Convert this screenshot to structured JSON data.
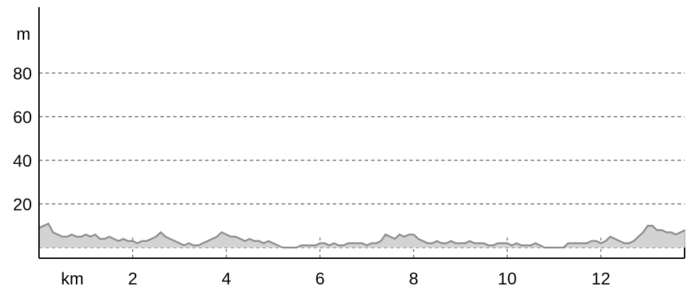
{
  "chart_data": {
    "type": "area",
    "title": "",
    "xlabel": "km",
    "ylabel": "m",
    "xlim": [
      0,
      13.8
    ],
    "ylim": [
      0,
      95
    ],
    "x_ticks": [
      2,
      4,
      6,
      8,
      10,
      12
    ],
    "y_ticks": [
      20,
      40,
      60,
      80
    ],
    "x_tick_labels": [
      "2",
      "4",
      "6",
      "8",
      "10",
      "12"
    ],
    "y_tick_labels": [
      "20",
      "40",
      "60",
      "80"
    ],
    "grid": true,
    "legend": "none",
    "colors": {
      "fill": "#d3d3d3",
      "line": "#8c8c8c",
      "grid": "#555555",
      "axis": "#000000"
    },
    "series": [
      {
        "x": [
          0,
          0.1,
          0.2,
          0.3,
          0.4,
          0.5,
          0.6,
          0.7,
          0.8,
          0.9,
          1.0,
          1.1,
          1.2,
          1.3,
          1.4,
          1.5,
          1.6,
          1.7,
          1.8,
          1.9,
          2.0,
          2.1,
          2.2,
          2.3,
          2.4,
          2.5,
          2.6,
          2.7,
          2.8,
          2.9,
          3.0,
          3.1,
          3.2,
          3.3,
          3.4,
          3.5,
          3.6,
          3.7,
          3.8,
          3.9,
          4.0,
          4.1,
          4.2,
          4.3,
          4.4,
          4.5,
          4.6,
          4.7,
          4.8,
          4.9,
          5.0,
          5.1,
          5.2,
          5.3,
          5.4,
          5.5,
          5.6,
          5.7,
          5.8,
          5.9,
          6.0,
          6.1,
          6.2,
          6.3,
          6.4,
          6.5,
          6.6,
          6.7,
          6.8,
          6.9,
          7.0,
          7.1,
          7.2,
          7.3,
          7.4,
          7.5,
          7.6,
          7.7,
          7.8,
          7.9,
          8.0,
          8.1,
          8.2,
          8.3,
          8.4,
          8.5,
          8.6,
          8.7,
          8.8,
          8.9,
          9.0,
          9.1,
          9.2,
          9.3,
          9.4,
          9.5,
          9.6,
          9.7,
          9.8,
          9.9,
          10.0,
          10.1,
          10.2,
          10.3,
          10.4,
          10.5,
          10.6,
          10.7,
          10.8,
          10.9,
          11.0,
          11.1,
          11.2,
          11.3,
          11.4,
          11.5,
          11.6,
          11.7,
          11.8,
          11.9,
          12.0,
          12.1,
          12.2,
          12.3,
          12.4,
          12.5,
          12.6,
          12.7,
          12.8,
          12.9,
          13.0,
          13.1,
          13.2,
          13.3,
          13.4,
          13.5,
          13.6,
          13.7,
          13.8
        ],
        "y": [
          9,
          10,
          11,
          7,
          6,
          5,
          5,
          6,
          5,
          5,
          6,
          5,
          6,
          4,
          4,
          5,
          4,
          3,
          4,
          3,
          3,
          2,
          3,
          3,
          4,
          5,
          7,
          5,
          4,
          3,
          2,
          1,
          2,
          1,
          1,
          2,
          3,
          4,
          5,
          7,
          6,
          5,
          5,
          4,
          3,
          4,
          3,
          3,
          2,
          3,
          2,
          1,
          0,
          0,
          0,
          0,
          1,
          1,
          1,
          1,
          2,
          2,
          1,
          2,
          1,
          1,
          2,
          2,
          2,
          2,
          1,
          2,
          2,
          3,
          6,
          5,
          4,
          6,
          5,
          6,
          6,
          4,
          3,
          2,
          2,
          3,
          2,
          2,
          3,
          2,
          2,
          2,
          3,
          2,
          2,
          2,
          1,
          1,
          2,
          2,
          2,
          1,
          2,
          1,
          1,
          1,
          2,
          1,
          0,
          0,
          0,
          0,
          0,
          2,
          2,
          2,
          2,
          2,
          3,
          3,
          2,
          3,
          5,
          4,
          3,
          2,
          2,
          3,
          5,
          7,
          10,
          10,
          8,
          8,
          7,
          7,
          6,
          7,
          8
        ]
      }
    ]
  }
}
